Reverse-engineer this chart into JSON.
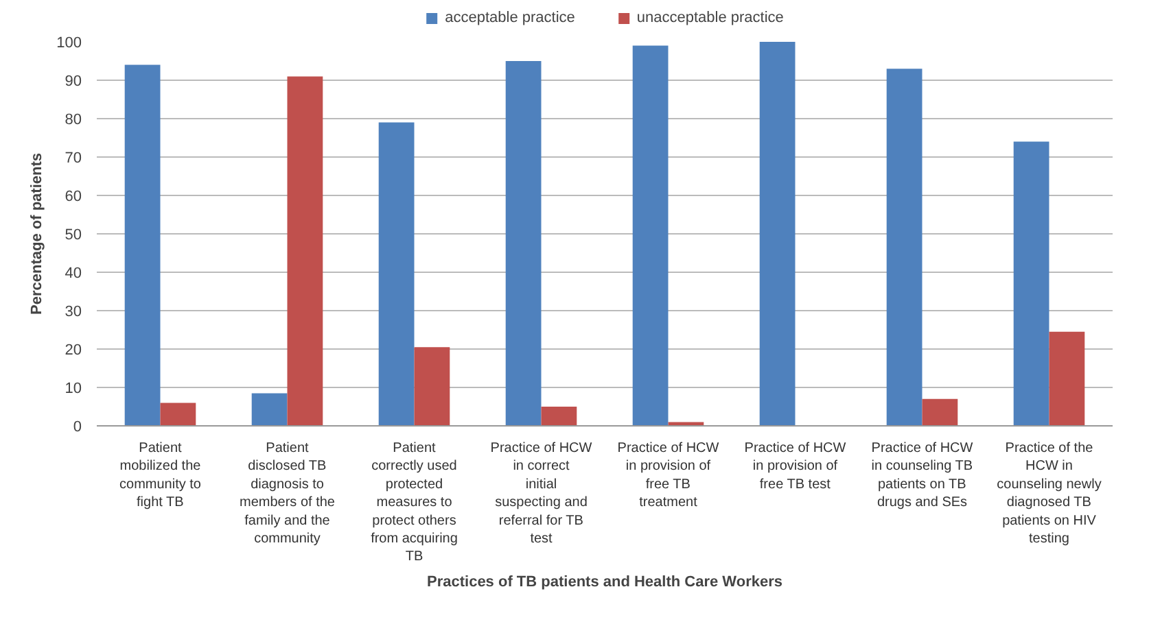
{
  "chart_data": {
    "type": "bar",
    "xlabel": "Practices of TB patients and Health Care Workers",
    "ylabel": "Percentage of patients",
    "categories": [
      "Patient mobilized the community to fight TB",
      "Patient disclosed TB diagnosis to members of the family and the community",
      "Patient correctly used protected measures to protect others from acquiring TB",
      "Practice of HCW in correct initial suspecting and referral for TB test",
      "Practice of HCW in provision of free TB treatment",
      "Practice of HCW in provision of free TB test",
      "Practice of HCW in counseling TB patients on TB drugs and SEs",
      "Practice of the HCW in counseling newly diagnosed TB patients on HIV testing"
    ],
    "series": [
      {
        "name": "acceptable practice",
        "color": "#4f81bd",
        "values": [
          94,
          8.5,
          79,
          95,
          99,
          100,
          93,
          74
        ]
      },
      {
        "name": "unacceptable practice",
        "color": "#c0504d",
        "values": [
          6,
          91,
          20.5,
          5,
          1,
          0,
          7,
          24.5
        ]
      }
    ],
    "ylim": [
      0,
      100
    ],
    "yticks": [
      0,
      10,
      20,
      30,
      40,
      50,
      60,
      70,
      80,
      90,
      100
    ],
    "grid": "y",
    "legend": "top"
  }
}
